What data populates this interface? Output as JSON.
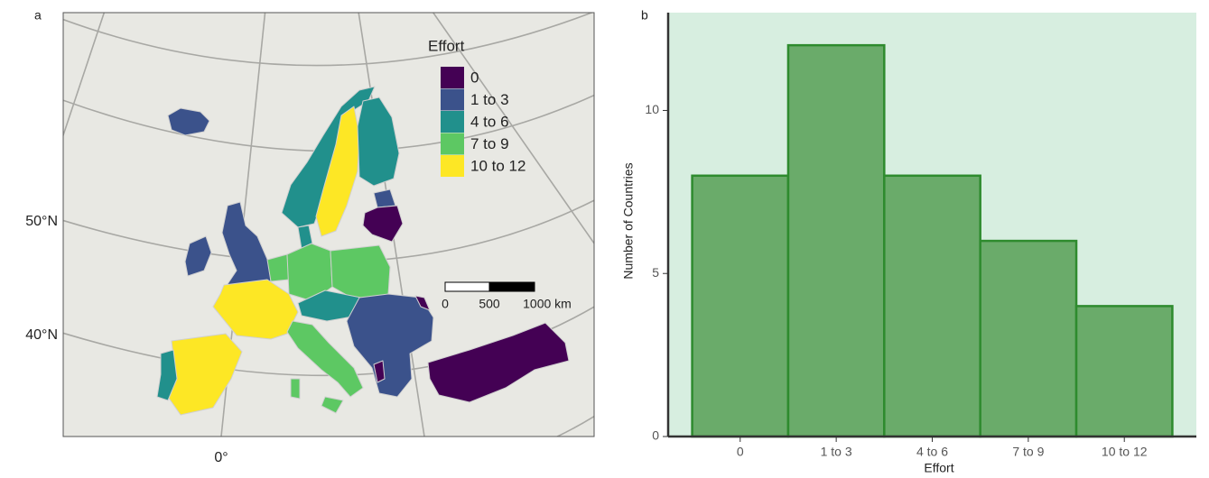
{
  "chart_data": [
    {
      "type": "map",
      "panel": "a",
      "legend_title": "Effort",
      "legend": [
        {
          "label": "0",
          "color": "#440154"
        },
        {
          "label": "1 to 3",
          "color": "#3b528b"
        },
        {
          "label": "4 to 6",
          "color": "#21908c"
        },
        {
          "label": "7 to 9",
          "color": "#5dc863"
        },
        {
          "label": "10 to 12",
          "color": "#fde725"
        }
      ],
      "graticule_labels": [
        "50°N",
        "40°N",
        "0°"
      ],
      "scale_bar_labels": [
        "0",
        "500",
        "1000 km"
      ],
      "background": "#e8e8e3"
    },
    {
      "type": "bar",
      "panel": "b",
      "categories": [
        "0",
        "1 to 3",
        "4 to 6",
        "7 to 9",
        "10 to 12"
      ],
      "values": [
        8,
        12,
        8,
        6,
        4
      ],
      "color": "#6aab6a",
      "edge_color": "#2e8b2e",
      "background": "#d7eee0",
      "ylim": [
        0,
        13
      ],
      "yticks": [
        0,
        5,
        10
      ],
      "xlabel": "Effort",
      "ylabel": "Number of Countries"
    }
  ]
}
